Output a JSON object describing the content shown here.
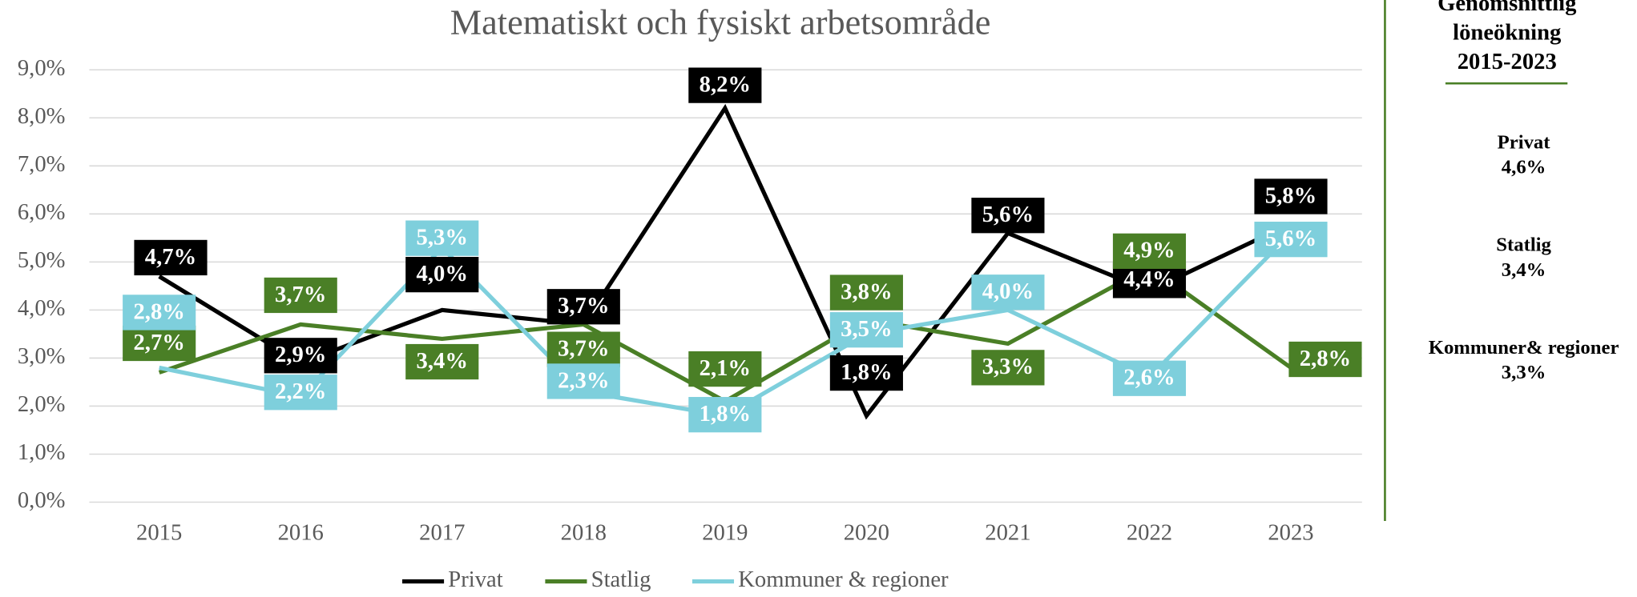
{
  "chart_data": {
    "type": "line",
    "title": "Matematiskt och fysiskt arbetsområde",
    "categories": [
      "2015",
      "2016",
      "2017",
      "2018",
      "2019",
      "2020",
      "2021",
      "2022",
      "2023"
    ],
    "series": [
      {
        "name": "Privat",
        "color": "#000000",
        "values": [
          4.7,
          2.9,
          4.0,
          3.7,
          8.2,
          1.8,
          5.6,
          4.4,
          5.8
        ],
        "value_labels": [
          "4,7%",
          "2,9%",
          "4,0%",
          "3,7%",
          "8,2%",
          "1,8%",
          "5,6%",
          "4,4%",
          "5,8%"
        ]
      },
      {
        "name": "Statlig",
        "color": "#4a7f26",
        "values": [
          2.7,
          3.7,
          3.4,
          3.7,
          2.1,
          3.8,
          3.3,
          4.9,
          2.8
        ],
        "value_labels": [
          "2,7%",
          "3,7%",
          "3,4%",
          "3,7%",
          "2,1%",
          "3,8%",
          "3,3%",
          "4,9%",
          "2,8%"
        ]
      },
      {
        "name": "Kommuner & regioner",
        "color": "#7ecfdc",
        "values": [
          2.8,
          2.2,
          5.3,
          2.3,
          1.8,
          3.5,
          4.0,
          2.6,
          5.6
        ],
        "value_labels": [
          "2,8%",
          "2,2%",
          "5,3%",
          "2,3%",
          "1,8%",
          "3,5%",
          "4,0%",
          "2,6%",
          "5,6%"
        ]
      }
    ],
    "ylim": [
      0,
      9
    ],
    "yticks": [
      {
        "value": 0,
        "label": "0,0%"
      },
      {
        "value": 1,
        "label": "1,0%"
      },
      {
        "value": 2,
        "label": "2,0%"
      },
      {
        "value": 3,
        "label": "3,0%"
      },
      {
        "value": 4,
        "label": "4,0%"
      },
      {
        "value": 5,
        "label": "5,0%"
      },
      {
        "value": 6,
        "label": "6,0%"
      },
      {
        "value": 7,
        "label": "7,0%"
      },
      {
        "value": 8,
        "label": "8,0%"
      },
      {
        "value": 9,
        "label": "9,0%"
      }
    ],
    "grid": true,
    "legend": "bottom"
  },
  "side_panel": {
    "title_lines": [
      "Genomsnittlig",
      "löneökning",
      "2015-2023"
    ],
    "items": [
      {
        "name": "Privat",
        "value": "4,6%"
      },
      {
        "name": "Statlig",
        "value": "3,4%"
      },
      {
        "name": "Kommuner& regioner",
        "value": "3,3%"
      }
    ]
  }
}
